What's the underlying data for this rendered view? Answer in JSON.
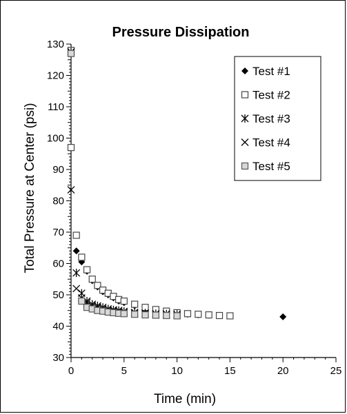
{
  "chart_data": {
    "type": "scatter",
    "title": "Pressure Dissipation",
    "xlabel": "Time (min)",
    "ylabel": "Total Pressure at Center (psi)",
    "xlim": [
      0,
      25
    ],
    "ylim": [
      30,
      130
    ],
    "xticks": [
      "0",
      "5",
      "10",
      "15",
      "20",
      "25"
    ],
    "yticks": [
      "30",
      "40",
      "50",
      "60",
      "70",
      "80",
      "90",
      "100",
      "110",
      "120",
      "130"
    ],
    "grid": false,
    "legend_position": "top-right",
    "series": [
      {
        "name": "Test #1",
        "marker": "diamond-filled",
        "points": [
          [
            0.5,
            64
          ],
          [
            1,
            60.5
          ],
          [
            1.5,
            57.5
          ],
          [
            2,
            54.5
          ],
          [
            2.5,
            52.5
          ],
          [
            3,
            51
          ],
          [
            3.5,
            50
          ],
          [
            4,
            49
          ],
          [
            4.5,
            48
          ],
          [
            5,
            47.5
          ],
          [
            6,
            46.5
          ],
          [
            7,
            45.5
          ],
          [
            8,
            45
          ],
          [
            9,
            44.5
          ],
          [
            10,
            44
          ],
          [
            11,
            43.8
          ],
          [
            12,
            43.6
          ],
          [
            13,
            43.5
          ],
          [
            14,
            43.4
          ],
          [
            15,
            43.3
          ],
          [
            20,
            43
          ]
        ]
      },
      {
        "name": "Test #2",
        "marker": "square-open",
        "points": [
          [
            0,
            128
          ],
          [
            0,
            97
          ],
          [
            0.5,
            69
          ],
          [
            1,
            62
          ],
          [
            1.5,
            58
          ],
          [
            2,
            55
          ],
          [
            2.5,
            53
          ],
          [
            3,
            51.5
          ],
          [
            3.5,
            50.5
          ],
          [
            4,
            49.5
          ],
          [
            4.5,
            48.5
          ],
          [
            5,
            48
          ],
          [
            6,
            47
          ],
          [
            7,
            46
          ],
          [
            8,
            45.3
          ],
          [
            9,
            44.8
          ],
          [
            10,
            44.3
          ],
          [
            11,
            44
          ],
          [
            12,
            43.8
          ],
          [
            13,
            43.6
          ],
          [
            14,
            43.4
          ],
          [
            15,
            43.3
          ]
        ]
      },
      {
        "name": "Test #3",
        "marker": "asterisk",
        "points": [
          [
            0,
            127.5
          ],
          [
            0.5,
            57
          ],
          [
            1,
            50.5
          ],
          [
            1.5,
            48
          ],
          [
            2,
            47
          ],
          [
            2.5,
            46.5
          ],
          [
            3,
            46
          ],
          [
            3.5,
            45.5
          ],
          [
            4,
            45.2
          ],
          [
            4.5,
            45
          ],
          [
            5,
            44.7
          ],
          [
            6,
            44.4
          ],
          [
            7,
            44.2
          ],
          [
            8,
            44
          ],
          [
            9,
            43.9
          ],
          [
            10,
            43.8
          ]
        ]
      },
      {
        "name": "Test #4",
        "marker": "x",
        "points": [
          [
            0,
            83.5
          ],
          [
            0.5,
            52
          ],
          [
            1,
            49
          ],
          [
            1.5,
            47.5
          ],
          [
            2,
            46.5
          ],
          [
            2.5,
            46
          ],
          [
            3,
            45.5
          ],
          [
            3.5,
            45
          ],
          [
            4,
            44.8
          ],
          [
            4.5,
            44.5
          ],
          [
            5,
            44.3
          ],
          [
            6,
            44
          ],
          [
            7,
            43.8
          ],
          [
            8,
            43.6
          ],
          [
            9,
            43.5
          ],
          [
            10,
            43.4
          ]
        ]
      },
      {
        "name": "Test #5",
        "marker": "square-open-gray",
        "points": [
          [
            0,
            127
          ],
          [
            1,
            48
          ],
          [
            1.5,
            46
          ],
          [
            2,
            45.5
          ],
          [
            2.5,
            45
          ],
          [
            3,
            44.8
          ],
          [
            3.5,
            44.5
          ],
          [
            4,
            44.3
          ],
          [
            4.5,
            44.1
          ],
          [
            5,
            44
          ],
          [
            6,
            43.8
          ],
          [
            7,
            43.6
          ],
          [
            8,
            43.5
          ],
          [
            9,
            43.4
          ],
          [
            10,
            43.3
          ]
        ]
      }
    ]
  }
}
